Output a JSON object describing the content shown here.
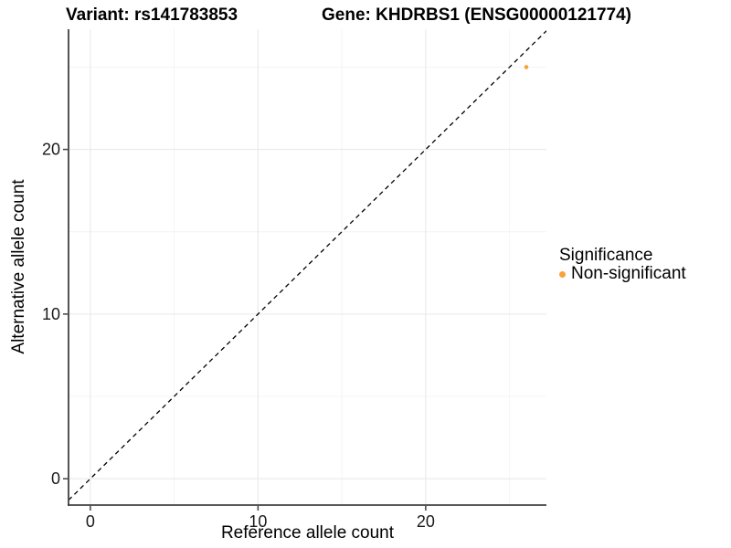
{
  "chart_data": {
    "type": "scatter",
    "title_left": "Variant: rs141783853",
    "title_right": "Gene: KHDRBS1 (ENSG00000121774)",
    "xlabel": "Reference allele count",
    "ylabel": "Alternative allele count",
    "xlim": [
      -1.3,
      27.2
    ],
    "ylim": [
      -1.6,
      27.3
    ],
    "x_ticks": [
      0,
      10,
      20
    ],
    "y_ticks": [
      0,
      10,
      20
    ],
    "x_minor_ticks": [
      5,
      15,
      25
    ],
    "y_minor_ticks": [
      5,
      15,
      25
    ],
    "grid": true,
    "reference_line": {
      "type": "abline",
      "slope": 1,
      "intercept": 0,
      "style": "dashed",
      "color": "#000000"
    },
    "series": [
      {
        "name": "Non-significant",
        "color": "#F9A13C",
        "points": [
          {
            "x": 26,
            "y": 25
          }
        ]
      }
    ],
    "legend": {
      "title": "Significance",
      "position": "right",
      "items": [
        {
          "label": "Non-significant",
          "color": "#F9A13C"
        }
      ]
    },
    "colors": {
      "axis_line": "#404040",
      "grid_major": "#e9e9e9",
      "grid_minor": "#f4f4f4",
      "tick_text": "#1a1a1a"
    }
  }
}
